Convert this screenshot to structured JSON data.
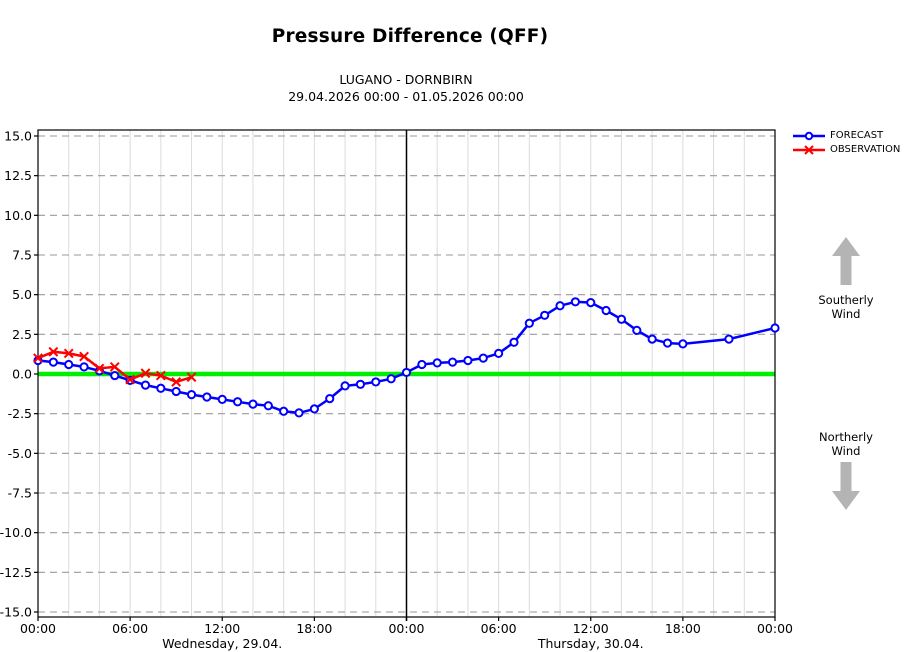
{
  "header": {
    "title": "Pressure Difference (QFF)",
    "subtitle1": "LUGANO - DORNBIRN",
    "subtitle2": "29.04.2026 00:00 - 01.05.2026 00:00"
  },
  "legend": {
    "items": [
      {
        "label": "FORECAST",
        "color": "#0000ff",
        "marker": "circle"
      },
      {
        "label": "OBSERVATION",
        "color": "#ff0000",
        "marker": "x"
      }
    ]
  },
  "wind_panel": {
    "southerly": [
      "Southerly",
      "Wind"
    ],
    "northerly": [
      "Northerly",
      "Wind"
    ],
    "arrow_color": "#b4b4b4"
  },
  "chart_data": {
    "type": "line",
    "title": "Pressure Difference (QFF)",
    "subtitle": "LUGANO - DORNBIRN, 29.04.2026 00:00 - 01.05.2026 00:00",
    "x_unit": "hours since 29.04.2026 00:00",
    "xlim": [
      0,
      48
    ],
    "ylim": [
      -15,
      15
    ],
    "grid": true,
    "legend_position": "top-right",
    "zero_line_color": "#00ee00",
    "day_separator_t": 24,
    "xticks": [
      {
        "t": 0,
        "label": "00:00"
      },
      {
        "t": 6,
        "label": "06:00"
      },
      {
        "t": 12,
        "label": "12:00"
      },
      {
        "t": 18,
        "label": "18:00"
      },
      {
        "t": 24,
        "label": "00:00"
      },
      {
        "t": 30,
        "label": "06:00"
      },
      {
        "t": 36,
        "label": "12:00"
      },
      {
        "t": 42,
        "label": "18:00"
      },
      {
        "t": 48,
        "label": "00:00"
      }
    ],
    "day_labels": [
      {
        "t": 12,
        "label": "Wednesday, 29.04."
      },
      {
        "t": 36,
        "label": "Thursday, 30.04."
      }
    ],
    "yticks": [
      {
        "v": 15,
        "label": "15.0"
      },
      {
        "v": 12.5,
        "label": "12.5"
      },
      {
        "v": 10,
        "label": "10.0"
      },
      {
        "v": 7.5,
        "label": "7.5"
      },
      {
        "v": 5,
        "label": "5.0"
      },
      {
        "v": 2.5,
        "label": "2.5"
      },
      {
        "v": 0,
        "label": "0.0"
      },
      {
        "v": -2.5,
        "label": "-2.5"
      },
      {
        "v": -5,
        "label": "-5.0"
      },
      {
        "v": -7.5,
        "label": "-7.5"
      },
      {
        "v": -10,
        "label": "-10.0"
      },
      {
        "v": -12.5,
        "label": "-12.5"
      },
      {
        "v": -15,
        "label": "-15.0"
      }
    ],
    "series": [
      {
        "name": "FORECAST",
        "color": "#0000ff",
        "marker": "circle",
        "points": [
          [
            0,
            0.85
          ],
          [
            1,
            0.75
          ],
          [
            2,
            0.6
          ],
          [
            3,
            0.45
          ],
          [
            4,
            0.2
          ],
          [
            5,
            -0.1
          ],
          [
            6,
            -0.4
          ],
          [
            7,
            -0.7
          ],
          [
            8,
            -0.9
          ],
          [
            9,
            -1.1
          ],
          [
            10,
            -1.3
          ],
          [
            11,
            -1.45
          ],
          [
            12,
            -1.6
          ],
          [
            13,
            -1.75
          ],
          [
            14,
            -1.9
          ],
          [
            15,
            -2.0
          ],
          [
            16,
            -2.35
          ],
          [
            17,
            -2.45
          ],
          [
            18,
            -2.2
          ],
          [
            19,
            -1.55
          ],
          [
            20,
            -0.75
          ],
          [
            21,
            -0.65
          ],
          [
            22,
            -0.5
          ],
          [
            23,
            -0.3
          ],
          [
            24,
            0.1
          ],
          [
            25,
            0.6
          ],
          [
            26,
            0.7
          ],
          [
            27,
            0.75
          ],
          [
            28,
            0.85
          ],
          [
            29,
            1.0
          ],
          [
            30,
            1.3
          ],
          [
            31,
            2.0
          ],
          [
            32,
            3.2
          ],
          [
            33,
            3.7
          ],
          [
            34,
            4.3
          ],
          [
            35,
            4.55
          ],
          [
            36,
            4.5
          ],
          [
            37,
            4.0
          ],
          [
            38,
            3.45
          ],
          [
            39,
            2.75
          ],
          [
            40,
            2.2
          ],
          [
            41,
            1.95
          ],
          [
            42,
            1.9
          ],
          [
            45,
            2.2
          ],
          [
            48,
            2.9
          ]
        ]
      },
      {
        "name": "OBSERVATION",
        "color": "#ff0000",
        "marker": "x",
        "points": [
          [
            0,
            1.0
          ],
          [
            1,
            1.4
          ],
          [
            2,
            1.3
          ],
          [
            3,
            1.1
          ],
          [
            4,
            0.35
          ],
          [
            5,
            0.45
          ],
          [
            6,
            -0.35
          ],
          [
            7,
            0.05
          ],
          [
            8,
            -0.1
          ],
          [
            9,
            -0.5
          ],
          [
            10,
            -0.2
          ]
        ]
      }
    ]
  }
}
